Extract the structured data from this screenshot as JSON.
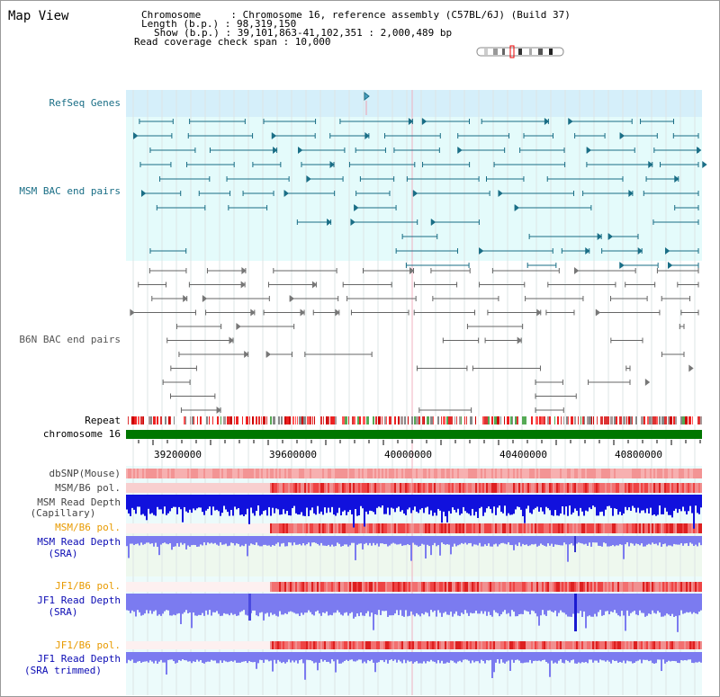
{
  "page": {
    "title": "Map View"
  },
  "header": {
    "line1": "Chromosome     : Chromosome 16, reference assembly (C57BL/6J) (Build 37)",
    "line2": "Length (b.p.) : 98,319,150",
    "line3": "Show (b.p.) : 39,101,863-41,102,351 : 2,000,489 bp",
    "line4": "Read coverage check span : 10,000"
  },
  "tracks": {
    "refseq": "RefSeq Genes",
    "msm_bac": "MSM BAC end pairs",
    "b6n_bac": "B6N BAC end pairs",
    "repeat": "Repeat",
    "chromosome": "chromosome 16",
    "dbsnp": "dbSNP(Mouse)",
    "msm_b6_pol_1": "MSM/B6 pol.",
    "msm_read_depth_cap_1": "MSM Read Depth",
    "msm_read_depth_cap_2": "(Capillary)",
    "msm_b6_pol_2": "MSM/B6 pol.",
    "msm_read_depth_sra_1": "MSM Read Depth",
    "msm_read_depth_sra_2": "(SRA)",
    "jf1_b6_pol_1": "JF1/B6 pol.",
    "jf1_read_depth_sra_1": "JF1 Read Depth",
    "jf1_read_depth_sra_2": "(SRA)",
    "jf1_b6_pol_2": "JF1/B6 pol.",
    "jf1_read_depth_trim_1": "JF1 Read Depth",
    "jf1_read_depth_trim_2": "(SRA trimmed)"
  },
  "axis": {
    "ticks": [
      "39200000",
      "39600000",
      "40000000",
      "40400000",
      "40800000"
    ]
  },
  "colors": {
    "teal": "#1a6e86",
    "grey": "#555555",
    "snp_red": "#ee3030",
    "depth_blue": "#1111dd",
    "depth_light": "#7b7bf0",
    "chrom_green": "#007700",
    "bg_cyan": "#e4fbfb",
    "bg_refseq": "#d5effa"
  }
}
